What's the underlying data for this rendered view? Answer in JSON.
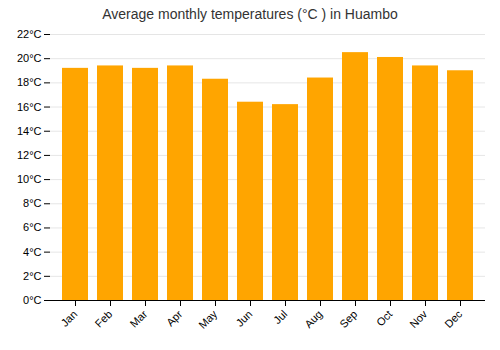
{
  "chart_data": {
    "type": "bar",
    "title": "Average monthly temperatures (°C ) in Huambo",
    "categories": [
      "Jan",
      "Feb",
      "Mar",
      "Apr",
      "May",
      "Jun",
      "Jul",
      "Aug",
      "Sep",
      "Oct",
      "Nov",
      "Dec"
    ],
    "values": [
      19.2,
      19.4,
      19.2,
      19.4,
      18.3,
      16.4,
      16.2,
      18.4,
      20.5,
      20.1,
      19.4,
      19.0
    ],
    "color": "#FFA500",
    "ylim": [
      0,
      22
    ],
    "yticks": [
      {
        "value": 0,
        "label": "0°C"
      },
      {
        "value": 2,
        "label": "2°C"
      },
      {
        "value": 4,
        "label": "4°C"
      },
      {
        "value": 6,
        "label": "6°C"
      },
      {
        "value": 8,
        "label": "8°C"
      },
      {
        "value": 10,
        "label": "10°C"
      },
      {
        "value": 12,
        "label": "12°C"
      },
      {
        "value": 14,
        "label": "14°C"
      },
      {
        "value": 16,
        "label": "16°C"
      },
      {
        "value": 18,
        "label": "18°C"
      },
      {
        "value": 20,
        "label": "20°C"
      },
      {
        "value": 22,
        "label": "22°C"
      }
    ],
    "grid": true
  }
}
